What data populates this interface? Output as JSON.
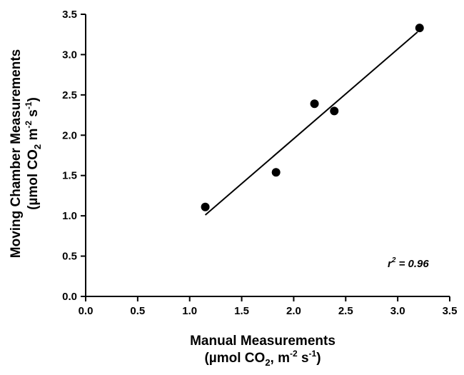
{
  "chart_data": {
    "type": "scatter",
    "x": [
      1.15,
      1.83,
      2.2,
      2.39,
      3.21
    ],
    "y": [
      1.11,
      1.54,
      2.39,
      2.3,
      3.33
    ],
    "fit_line": {
      "x": [
        1.15,
        3.19
      ],
      "y": [
        1.01,
        3.28
      ]
    },
    "xlim": [
      0,
      3.5
    ],
    "ylim": [
      0,
      3.5
    ],
    "xticks": [
      "0.0",
      "0.5",
      "1.0",
      "1.5",
      "2.0",
      "2.5",
      "3.0",
      "3.5"
    ],
    "yticks": [
      "0.0",
      "0.5",
      "1.0",
      "1.5",
      "2.0",
      "2.5",
      "3.0",
      "3.5"
    ],
    "xlabel": {
      "line1": "Manual Measurements",
      "line2_prefix": "(µmol CO",
      "line2_sub": "2",
      "line2_mid": ", m",
      "line2_sup1": "-2",
      "line2_s": " s",
      "line2_sup2": "-1",
      "line2_end": ")"
    },
    "ylabel": {
      "line1": "Moving Chamber Measurements",
      "line2_prefix": "(µmol CO",
      "line2_sub": "2",
      "line2_mid": " m",
      "line2_sup1": "-2",
      "line2_s": " s",
      "line2_sup2": "-1",
      "line2_end": ")"
    },
    "annotation": {
      "r": "r",
      "sup": "2",
      "rest": " = 0.96"
    },
    "grid": false,
    "marker_color": "#000000",
    "line_color": "#000000"
  }
}
